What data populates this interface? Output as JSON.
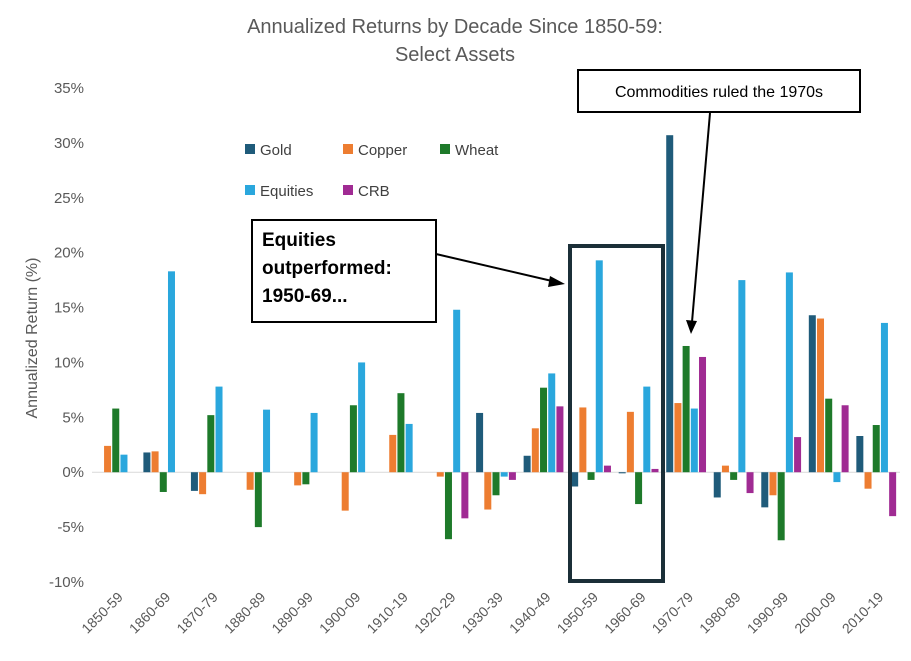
{
  "chart_data": {
    "type": "bar",
    "title": [
      "Annualized Returns by Decade Since 1850-59:",
      "Select Assets"
    ],
    "ylabel": "Annualized Return (%)",
    "xlabel": "",
    "ylim": [
      -10,
      35
    ],
    "yticks": [
      -10,
      -5,
      0,
      5,
      10,
      15,
      20,
      25,
      30,
      35
    ],
    "ytick_suffix": "%",
    "categories": [
      "1850-59",
      "1860-69",
      "1870-79",
      "1880-89",
      "1890-99",
      "1900-09",
      "1910-19",
      "1920-29",
      "1930-39",
      "1940-49",
      "1950-59",
      "1960-69",
      "1970-79",
      "1980-89",
      "1990-99",
      "2000-09",
      "2010-19"
    ],
    "series": [
      {
        "name": "Gold",
        "color": "#1f5b7a",
        "values": [
          null,
          1.8,
          -1.7,
          null,
          null,
          null,
          null,
          null,
          5.4,
          1.5,
          -1.3,
          -0.1,
          30.7,
          -2.3,
          -3.2,
          14.3,
          3.3
        ]
      },
      {
        "name": "Copper",
        "color": "#ed7d31",
        "values": [
          2.4,
          1.9,
          -2.0,
          -1.6,
          -1.2,
          -3.5,
          3.4,
          -0.4,
          -3.4,
          4.0,
          5.9,
          5.5,
          6.3,
          0.6,
          -2.1,
          14.0,
          -1.5
        ]
      },
      {
        "name": "Wheat",
        "color": "#1e7a2a",
        "values": [
          5.8,
          -1.8,
          5.2,
          -5.0,
          -1.1,
          6.1,
          7.2,
          -6.1,
          -2.1,
          7.7,
          -0.7,
          -2.9,
          11.5,
          -0.7,
          -6.2,
          6.7,
          4.3
        ]
      },
      {
        "name": "Equities",
        "color": "#2aa7dd",
        "values": [
          1.6,
          18.3,
          7.8,
          5.7,
          5.4,
          10.0,
          4.4,
          14.8,
          -0.4,
          9.0,
          19.3,
          7.8,
          5.8,
          17.5,
          18.2,
          -0.9,
          13.6
        ]
      },
      {
        "name": "CRB",
        "color": "#a02b93",
        "values": [
          null,
          null,
          null,
          null,
          null,
          null,
          null,
          -4.2,
          -0.7,
          6.0,
          0.6,
          0.3,
          10.5,
          -1.9,
          3.2,
          6.1,
          -4.0
        ]
      }
    ],
    "legend_position": "upper-left",
    "grid": false
  },
  "annotations": {
    "commodities": "Commodities ruled the 1970s",
    "equities": [
      "Equities",
      "outperformed:",
      "1950-69..."
    ]
  }
}
